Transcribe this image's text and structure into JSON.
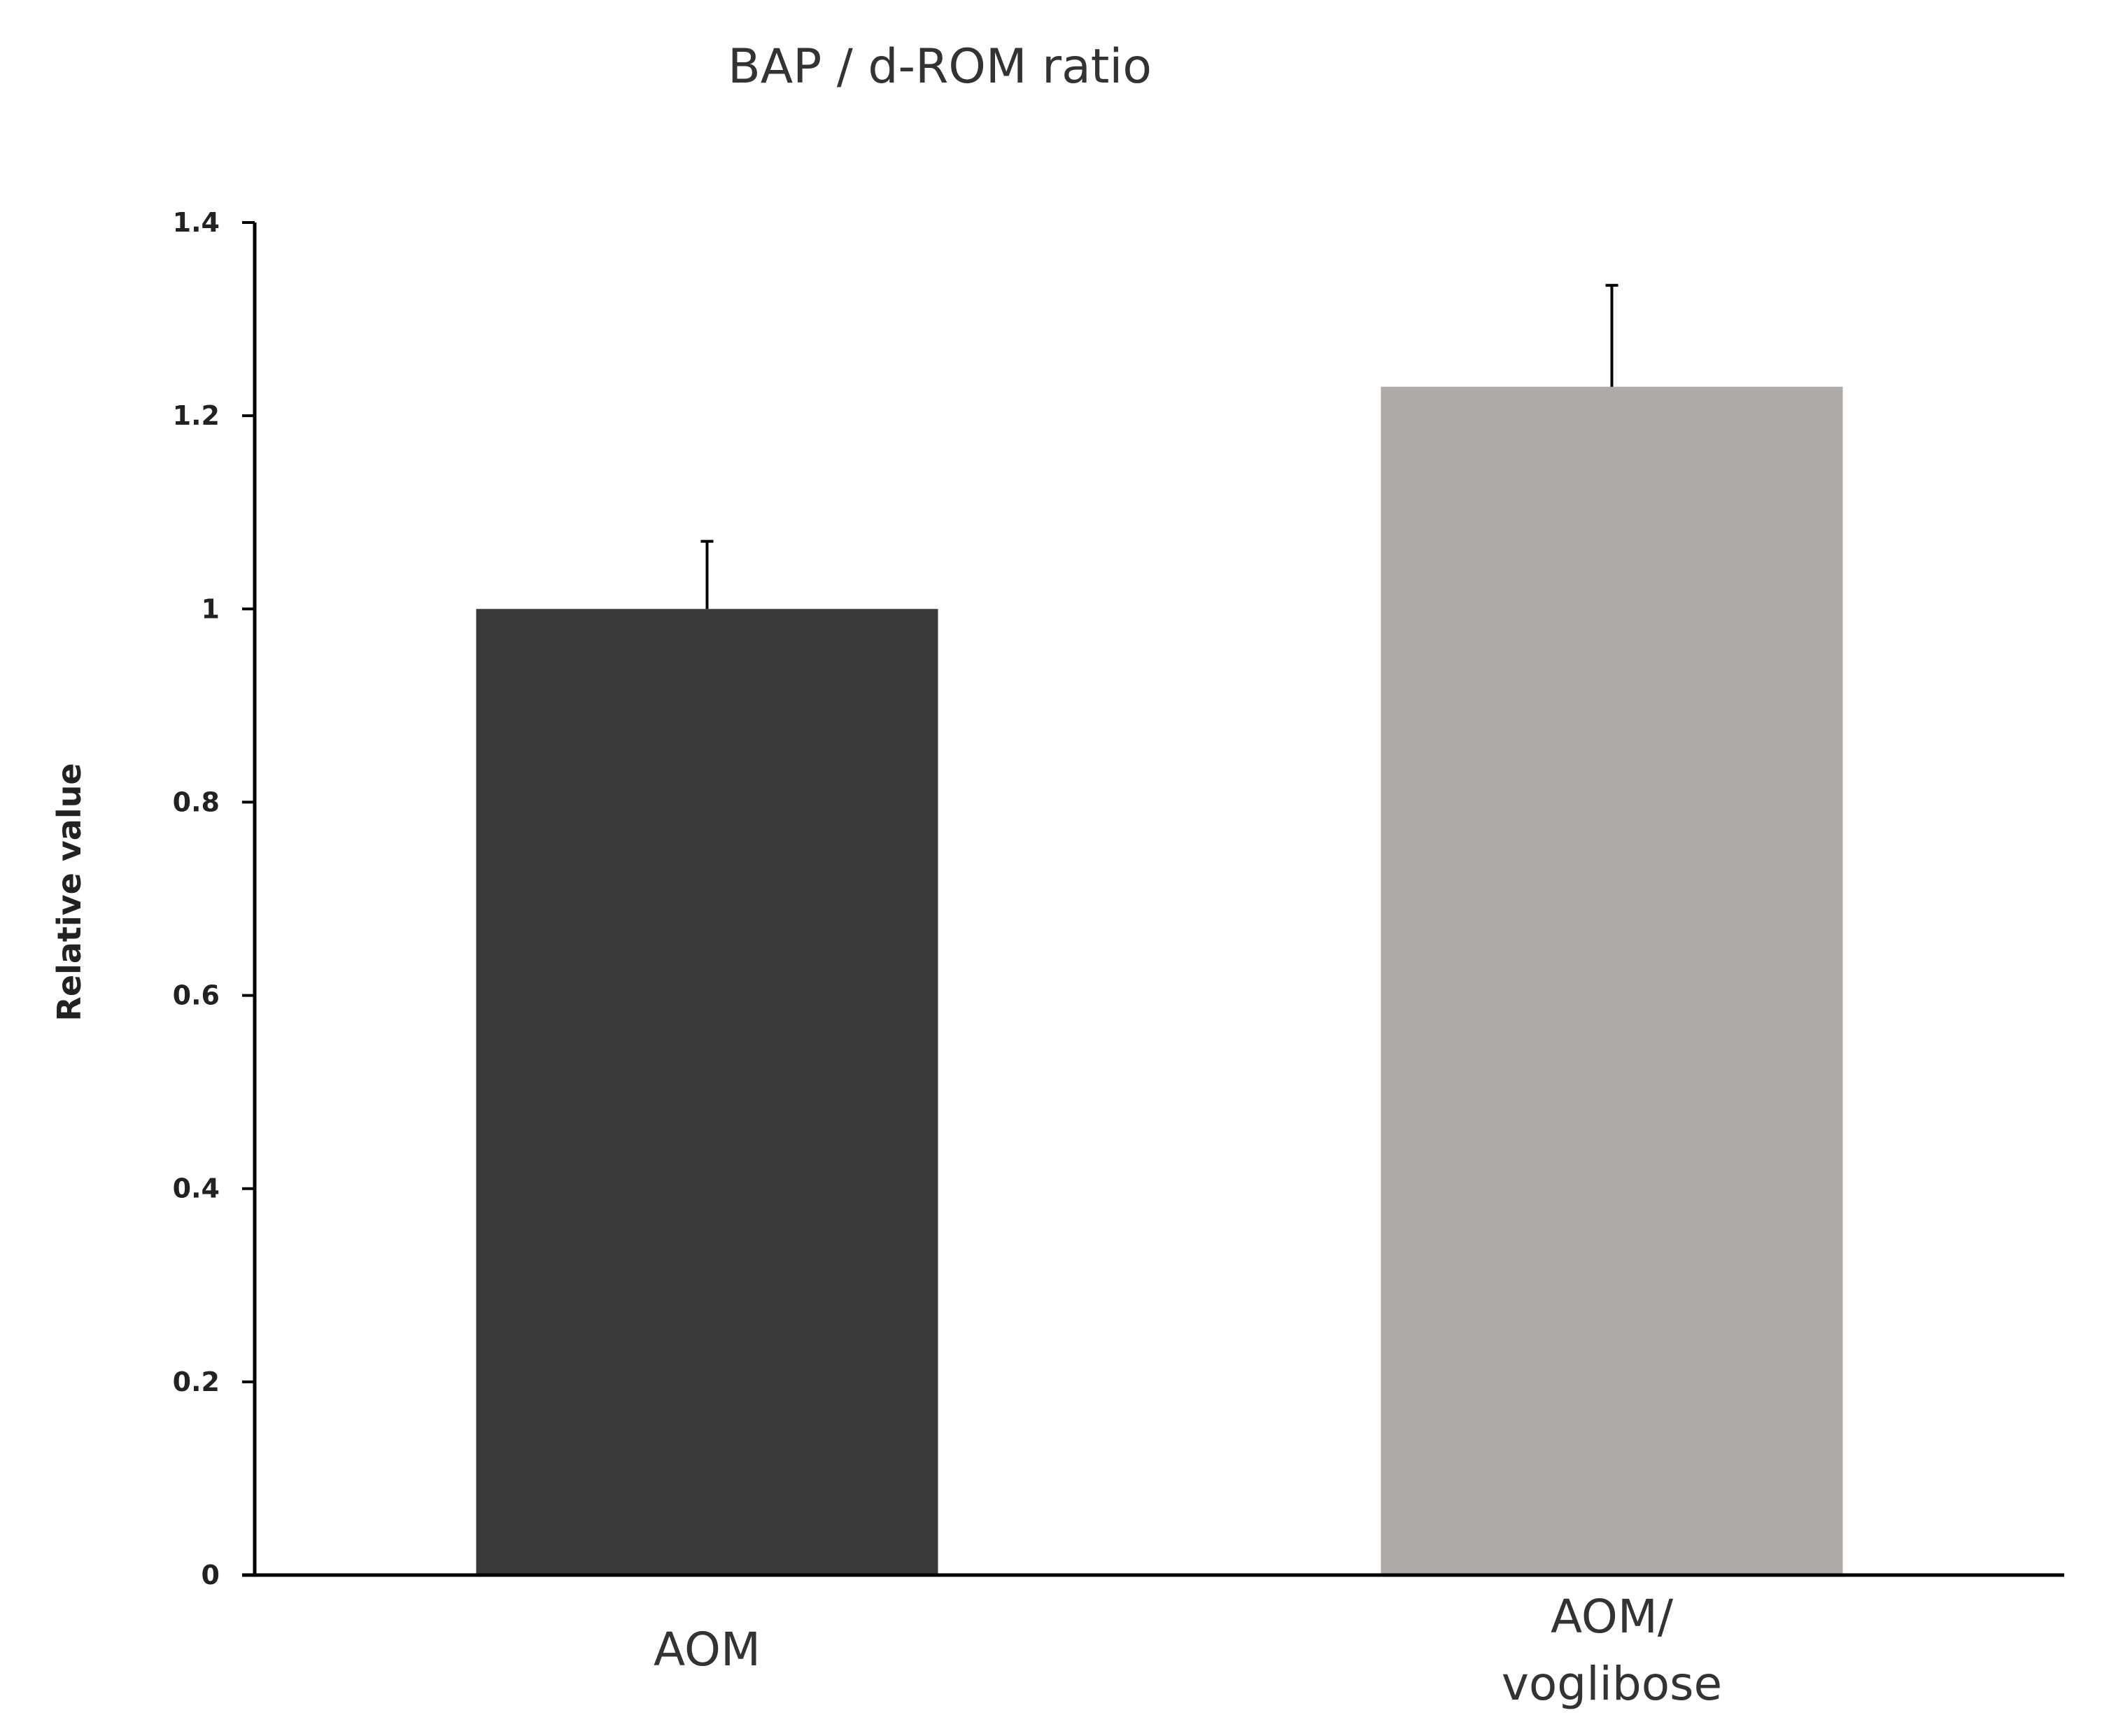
{
  "chart_data": {
    "type": "bar",
    "title": "BAP / d-ROM ratio",
    "xlabel": "",
    "ylabel": "Relative value",
    "ylim": [
      0,
      1.4
    ],
    "yticks": [
      "0",
      "0.2",
      "0.4",
      "0.6",
      "0.8",
      "1",
      "1.2",
      "1.4"
    ],
    "ytick_values": [
      0,
      0.2,
      0.4,
      0.6,
      0.8,
      1.0,
      1.2,
      1.4
    ],
    "grid": false,
    "legend": "none",
    "categories": [
      [
        "AOM"
      ],
      [
        "AOM/",
        "voglibose"
      ]
    ],
    "series": [
      {
        "values": [
          1.0,
          1.23
        ],
        "errors": [
          0.07,
          0.105
        ],
        "colors": [
          "#3a3937",
          "#aeaaa8"
        ]
      }
    ]
  }
}
